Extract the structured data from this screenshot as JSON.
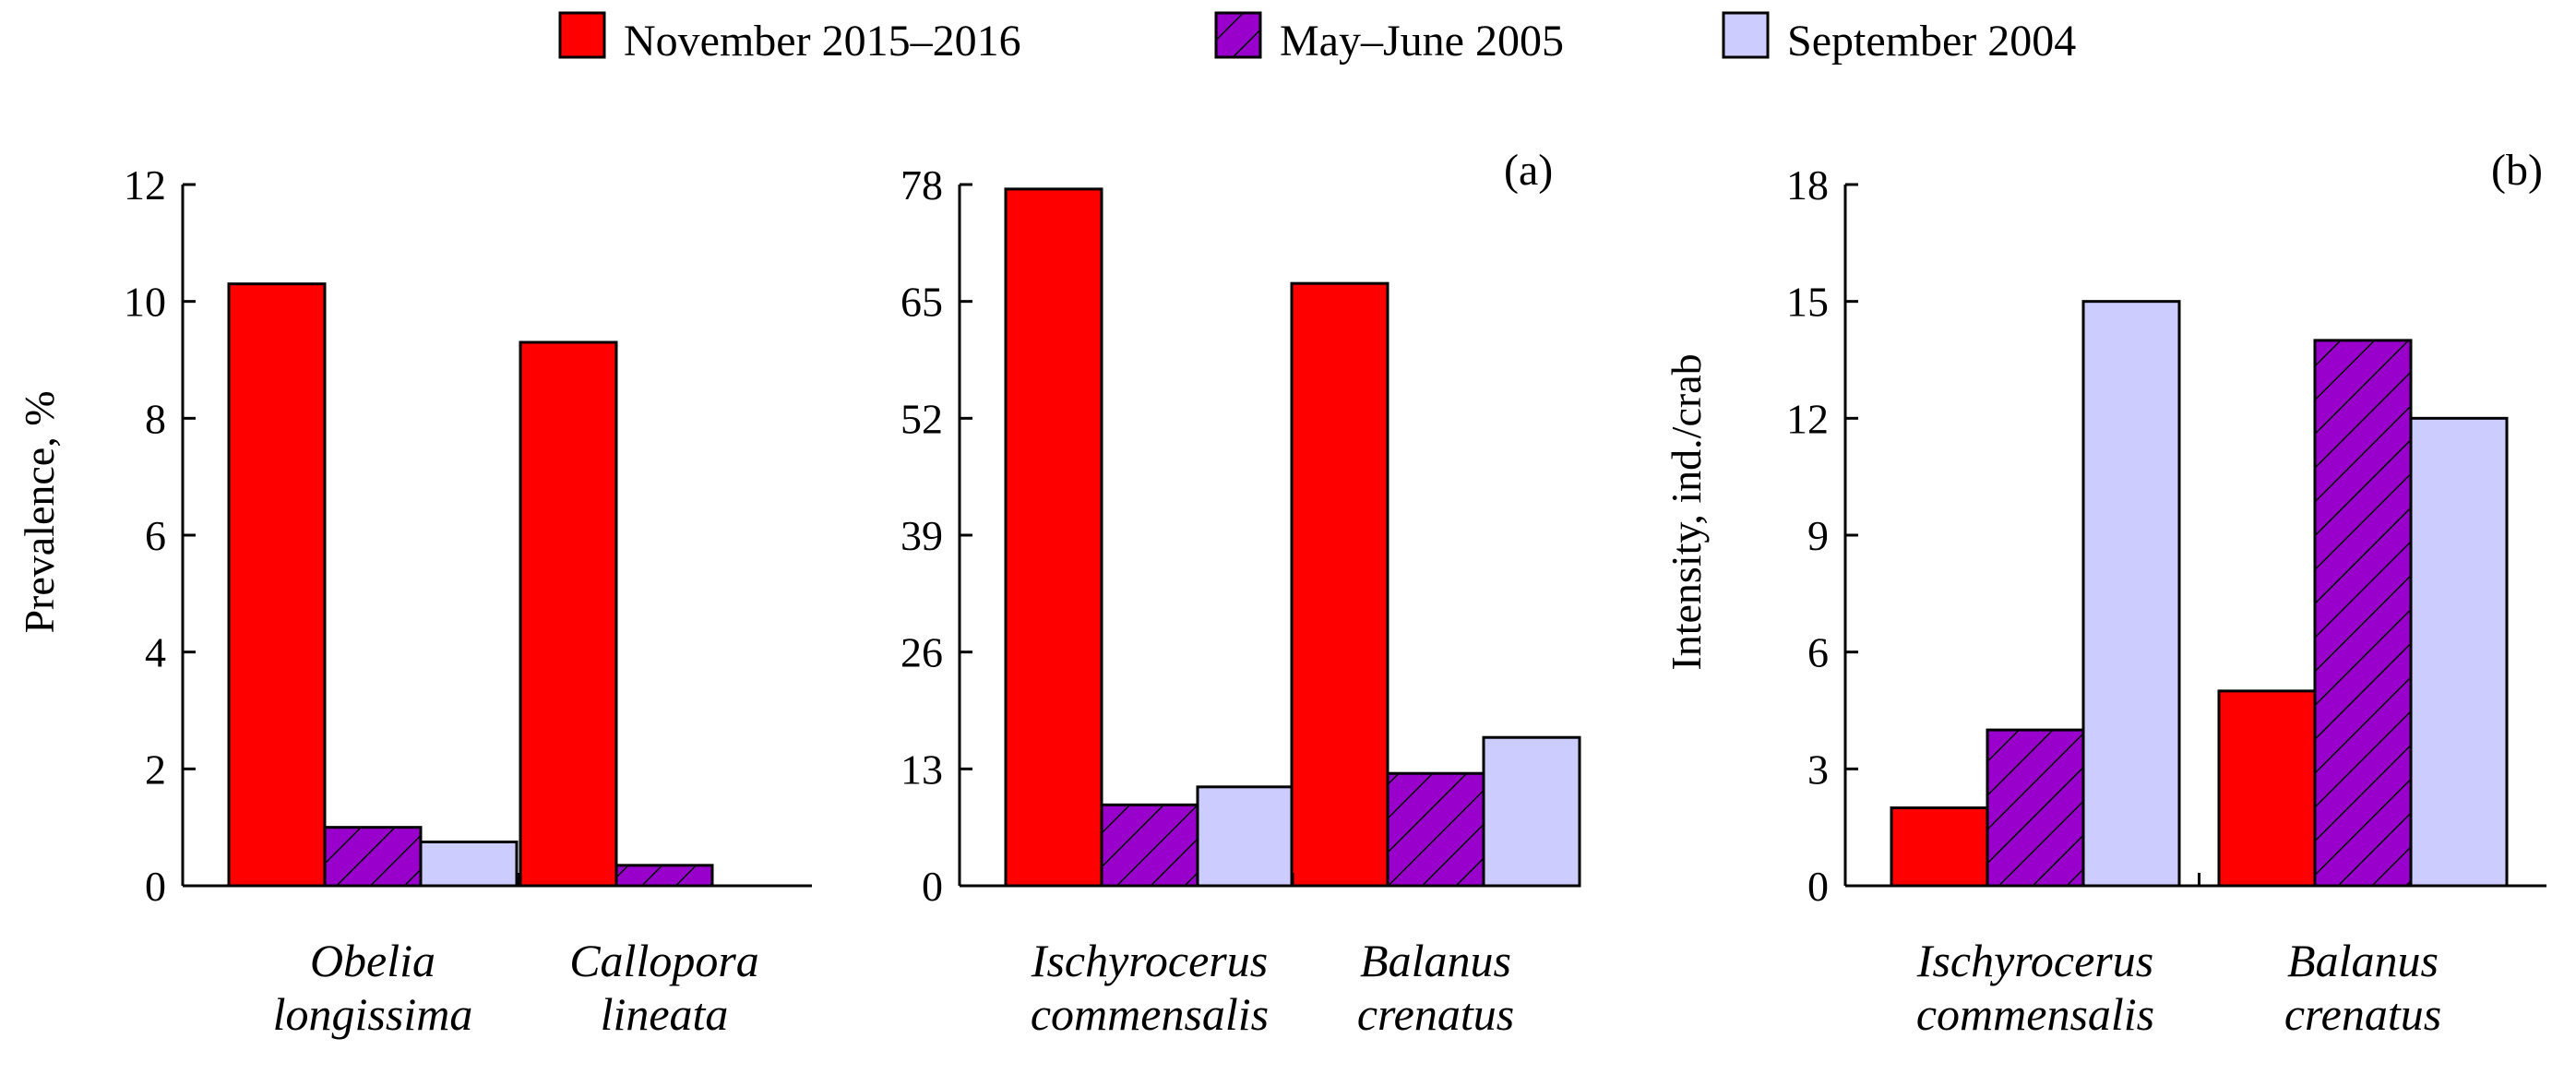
{
  "legend": {
    "items": [
      {
        "label": "November 2015–2016",
        "color": "#ff0000",
        "pattern": "solid"
      },
      {
        "label": "May–June 2005",
        "color": "#9900cc",
        "pattern": "hatch"
      },
      {
        "label": "September 2004",
        "color": "#ccccff",
        "pattern": "solid"
      }
    ]
  },
  "chart_data": [
    {
      "type": "bar",
      "panel": "a-left",
      "ylabel": "Prevalence, %",
      "ylim": [
        0,
        12
      ],
      "yticks": [
        "0",
        "2",
        "4",
        "6",
        "8",
        "10",
        "12"
      ],
      "categories": [
        [
          "Obelia",
          "longissima"
        ],
        [
          "Callopora",
          "lineata"
        ]
      ],
      "series": [
        {
          "name": "November 2015–2016",
          "values": [
            10.3,
            9.3
          ]
        },
        {
          "name": "May–June 2005",
          "values": [
            1.0,
            0.35
          ]
        },
        {
          "name": "September 2004",
          "values": [
            0.75,
            null
          ]
        }
      ]
    },
    {
      "type": "bar",
      "panel": "a-right",
      "panel_letter": "(a)",
      "ylim": [
        0,
        78
      ],
      "yticks": [
        "0",
        "13",
        "26",
        "39",
        "52",
        "65",
        "78"
      ],
      "categories": [
        [
          "Ischyrocerus",
          "commensalis"
        ],
        [
          "Balanus",
          "crenatus"
        ]
      ],
      "series": [
        {
          "name": "November 2015–2016",
          "values": [
            77.5,
            67
          ]
        },
        {
          "name": "May–June 2005",
          "values": [
            9,
            12.5
          ]
        },
        {
          "name": "September 2004",
          "values": [
            11,
            16.5
          ]
        }
      ]
    },
    {
      "type": "bar",
      "panel": "b",
      "panel_letter": "(b)",
      "ylabel": "Intensity, ind./crab",
      "ylim": [
        0,
        18
      ],
      "yticks": [
        "0",
        "3",
        "6",
        "9",
        "12",
        "15",
        "18"
      ],
      "categories": [
        [
          "Ischyrocerus",
          "commensalis"
        ],
        [
          "Balanus",
          "crenatus"
        ]
      ],
      "series": [
        {
          "name": "November 2015–2016",
          "values": [
            2,
            5
          ]
        },
        {
          "name": "May–June 2005",
          "values": [
            4,
            14
          ]
        },
        {
          "name": "September 2004",
          "values": [
            15,
            12
          ]
        }
      ]
    }
  ]
}
